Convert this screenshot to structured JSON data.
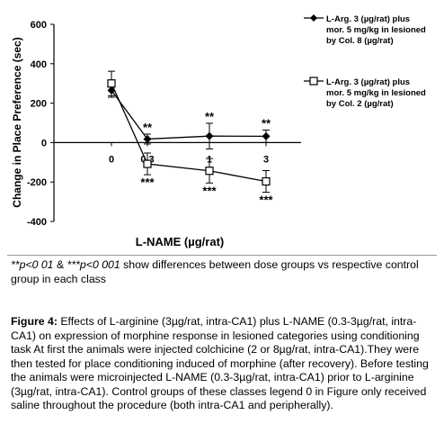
{
  "chart_data": {
    "type": "line",
    "ylabel": "Change in Place Preference (sec)",
    "xlabel": "L-NAME (µg/rat)",
    "ylim": [
      -400,
      600
    ],
    "yticks": [
      600,
      400,
      200,
      0,
      -200,
      -400
    ],
    "grid": false,
    "legend_position": "top-right",
    "categories": [
      "0",
      "0.3",
      "1",
      "3"
    ],
    "series": [
      {
        "name": "L-Arg. 3 (µg/rat) plus mor. 5 mg/kg in lesioned by Col. 8 (µg/rat)",
        "marker": "filled-diamond",
        "values": [
          265,
          18,
          33,
          32
        ],
        "errors": [
          35,
          25,
          65,
          32
        ],
        "significance": [
          "",
          "**",
          "**",
          "**"
        ]
      },
      {
        "name": "L-Arg. 3 (µg/rat) plus mor. 5 mg/kg in lesioned by Col. 2 (µg/rat)",
        "marker": "open-square",
        "values": [
          300,
          -108,
          -143,
          -197
        ],
        "errors": [
          62,
          55,
          62,
          55
        ],
        "significance": [
          "",
          "***",
          "***",
          "***"
        ]
      }
    ]
  },
  "legend_lines": [
    [
      "L-Arg. 3 (µg/rat) plus",
      "mor. 5 mg/kg in lesioned",
      "by Col. 8 (µg/rat)"
    ],
    [
      "L-Arg. 3 (µg/rat) plus",
      "mor. 5 mg/kg in lesioned",
      "by Col. 2 (µg/rat)"
    ]
  ],
  "sig_note": {
    "p1": "**p<0 01",
    "amp": " & ",
    "p2": "***p<0 001",
    "rest": " show differences between dose groups vs respective control group in each class"
  },
  "caption": {
    "label": "Figure 4:",
    "text": " Effects of L-arginine (3µg/rat, intra-CA1) plus L-NAME (0.3-3µg/rat, intra-CA1) on expression of morphine response in lesioned categories using conditioning task At first the animals were injected colchicine (2 or 8µg/rat, intra-CA1).They were then tested for place conditioning induced of morphine (after recovery). Before testing the animals were microinjected L-NAME (0.3-3µg/rat, intra-CA1) prior to L-arginine (3µg/rat, intra-CA1). Control groups of these classes legend 0 in Figure only received saline throughout the procedure (both intra-CA1 and peripherally)."
  }
}
